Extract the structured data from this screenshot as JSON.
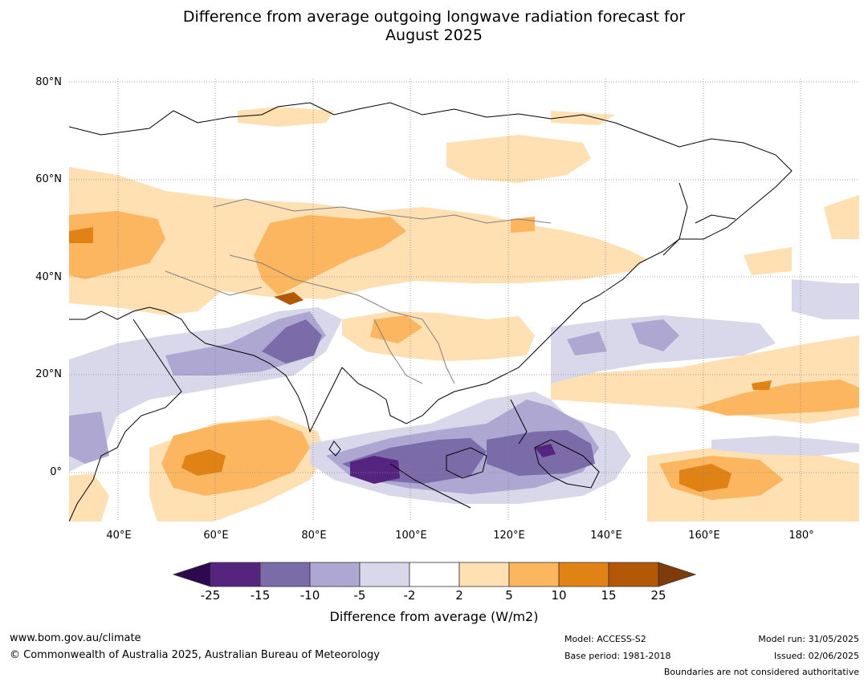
{
  "title": {
    "line1": "Difference from average outgoing longwave radiation forecast for",
    "line2": "August 2025"
  },
  "map": {
    "region": "Asia / Western Pacific",
    "lat_labels": [
      "80°N",
      "60°N",
      "40°N",
      "20°N",
      "0°"
    ],
    "lon_labels": [
      "40°E",
      "60°E",
      "80°E",
      "100°E",
      "120°E",
      "140°E",
      "160°E",
      "180°"
    ],
    "lat_range": [
      -10,
      81
    ],
    "lon_range": [
      30,
      192
    ]
  },
  "legend": {
    "ticks": [
      "-25",
      "-15",
      "-10",
      "-5",
      "-2",
      "2",
      "5",
      "10",
      "15",
      "25"
    ],
    "colors": [
      "#2d0a4e",
      "#54247f",
      "#7b6ba9",
      "#ada7d1",
      "#d8d8ea",
      "#ffffff",
      "#fee0b3",
      "#fbb65f",
      "#e08214",
      "#b35806",
      "#7f3b08"
    ],
    "label": "Difference from average (W/m2)"
  },
  "footer": {
    "website": "www.bom.gov.au/climate",
    "copyright": "© Commonwealth of Australia 2025, Australian Bureau of Meteorology",
    "model": "Model: ACCESS-S2",
    "base_period": "Base period: 1981-2018",
    "model_run": "Model run: 31/05/2025",
    "issued": "Issued: 02/06/2025",
    "disclaimer": "Boundaries are not considered authoritative"
  }
}
